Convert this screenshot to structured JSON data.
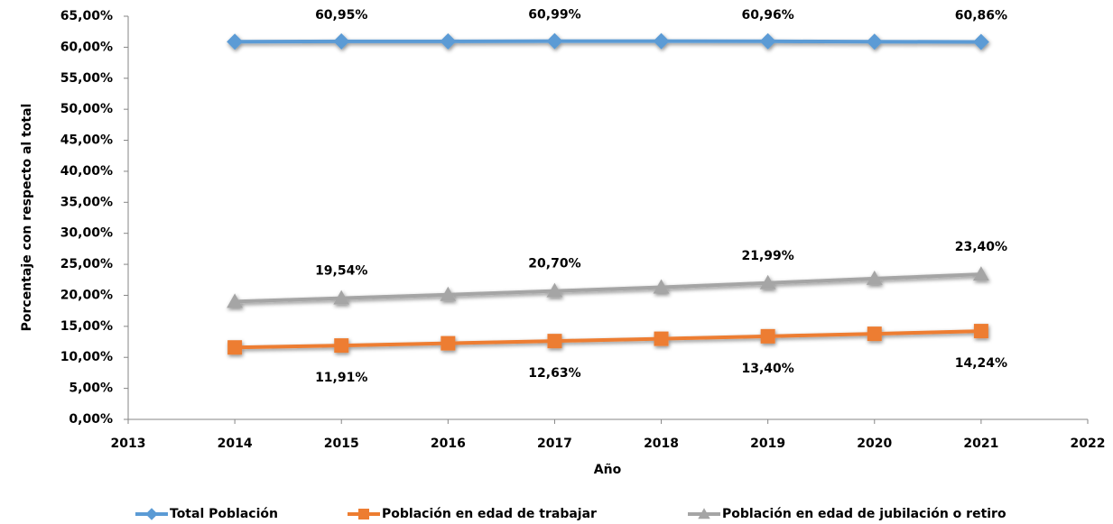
{
  "chart_data": {
    "type": "line",
    "x_label": "Año",
    "y_label": "Porcentaje con respecto al total",
    "x": [
      2014,
      2015,
      2016,
      2017,
      2018,
      2019,
      2020,
      2021
    ],
    "xlim": [
      2013,
      2022
    ],
    "xticks": [
      2013,
      2014,
      2015,
      2016,
      2017,
      2018,
      2019,
      2020,
      2021,
      2022
    ],
    "ylim": [
      0,
      65
    ],
    "yticks": [
      {
        "value": 0,
        "label": "0,00%"
      },
      {
        "value": 5,
        "label": "5,00%"
      },
      {
        "value": 10,
        "label": "10,00%"
      },
      {
        "value": 15,
        "label": "15,00%"
      },
      {
        "value": 20,
        "label": "20,00%"
      },
      {
        "value": 25,
        "label": "25,00%"
      },
      {
        "value": 30,
        "label": "30,00%"
      },
      {
        "value": 35,
        "label": "35,00%"
      },
      {
        "value": 40,
        "label": "40,00%"
      },
      {
        "value": 45,
        "label": "45,00%"
      },
      {
        "value": 50,
        "label": "50,00%"
      },
      {
        "value": 55,
        "label": "55,00%"
      },
      {
        "value": 60,
        "label": "60,00%"
      },
      {
        "value": 65,
        "label": "65,00%"
      }
    ],
    "legend": "bottom",
    "series": [
      {
        "name": "Total Población",
        "color": "#5b9bd5",
        "marker": "diamond",
        "values": [
          60.9,
          60.95,
          60.95,
          60.99,
          60.98,
          60.96,
          60.9,
          60.86
        ],
        "value_labels": [
          null,
          "60,95%",
          null,
          "60,99%",
          null,
          "60,96%",
          null,
          "60,86%"
        ]
      },
      {
        "name": "Población en edad de trabajar",
        "color": "#ed7d31",
        "marker": "square",
        "values": [
          11.6,
          11.91,
          12.27,
          12.63,
          13.0,
          13.4,
          13.8,
          14.24
        ],
        "value_labels": [
          null,
          "11,91%",
          null,
          "12,63%",
          null,
          "13,40%",
          null,
          "14,24%"
        ]
      },
      {
        "name": "Población en edad de jubilación o retiro",
        "color": "#a5a5a5",
        "marker": "triangle",
        "values": [
          19.0,
          19.54,
          20.1,
          20.7,
          21.3,
          21.99,
          22.7,
          23.4
        ],
        "value_labels": [
          null,
          "19,54%",
          null,
          "20,70%",
          null,
          "21,99%",
          null,
          "23,40%"
        ]
      }
    ]
  }
}
